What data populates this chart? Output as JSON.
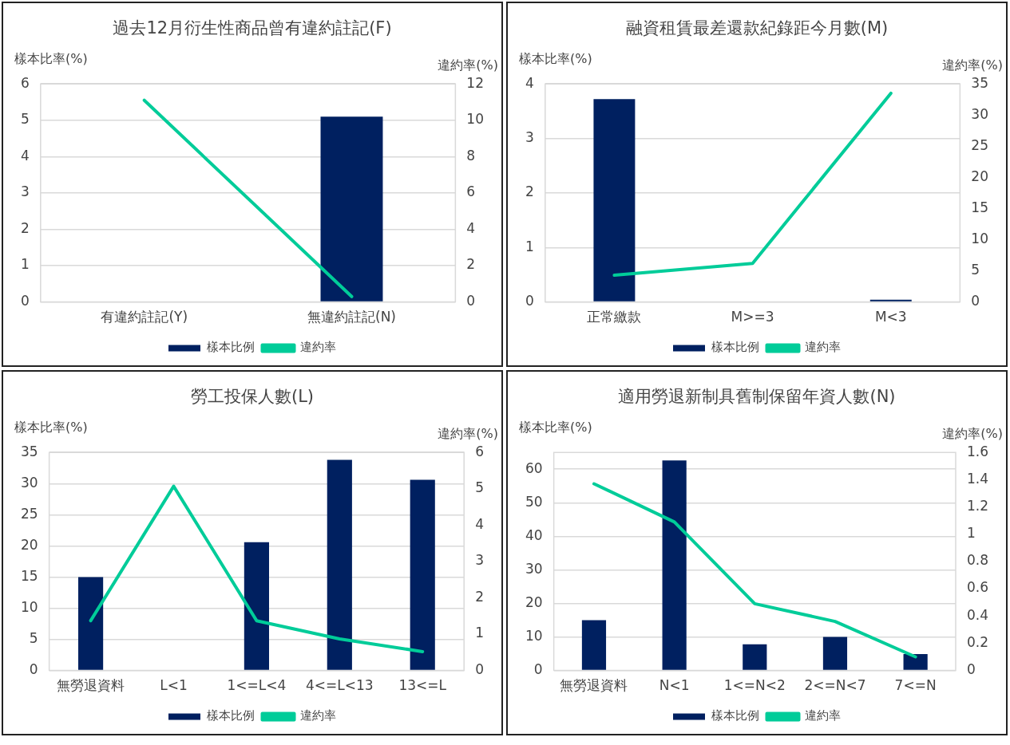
{
  "chart_data": [
    {
      "type": "bar",
      "title": "過去12月衍生性商品曾有違約註記(F)",
      "ylabel": "樣本比率(%)",
      "y2label": "違約率(%)",
      "categories": [
        "有違約註記(Y)",
        "無違約註記(N)"
      ],
      "series": [
        {
          "name": "樣本比例",
          "color": "#002060",
          "values": [
            0,
            5.1
          ]
        },
        {
          "name": "違約率",
          "type": "line",
          "axis": "y2",
          "color": "#00cc99",
          "values": [
            11.1,
            0.3
          ]
        }
      ],
      "ylim": [
        0,
        6
      ],
      "yticks": [
        0,
        1,
        2,
        3,
        4,
        5,
        6
      ],
      "y2lim": [
        0,
        12
      ],
      "y2ticks": [
        0,
        2,
        4,
        6,
        8,
        10,
        12
      ],
      "grid": "y",
      "legend": "bottom"
    },
    {
      "type": "bar",
      "title": "融資租賃最差還款紀錄距今月數(M)",
      "ylabel": "樣本比率(%)",
      "y2label": "違約率(%)",
      "categories": [
        "正常繳款",
        "M>=3",
        "M<3"
      ],
      "series": [
        {
          "name": "樣本比例",
          "color": "#002060",
          "values": [
            3.72,
            0,
            0.04
          ]
        },
        {
          "name": "違約率",
          "type": "line",
          "axis": "y2",
          "color": "#00cc99",
          "values": [
            4.3,
            6.2,
            33.5
          ]
        }
      ],
      "ylim": [
        0,
        4
      ],
      "yticks": [
        0,
        1,
        2,
        3,
        4
      ],
      "y2lim": [
        0,
        35
      ],
      "y2ticks": [
        0,
        5,
        10,
        15,
        20,
        25,
        30,
        35
      ],
      "grid": "y",
      "legend": "bottom"
    },
    {
      "type": "bar",
      "title": "勞工投保人數(L)",
      "ylabel": "樣本比率(%)",
      "y2label": "違約率(%)",
      "categories": [
        "無勞退資料",
        "L<1",
        "1<=L<4",
        "4<=L<13",
        "13<=L"
      ],
      "series": [
        {
          "name": "樣本比例",
          "color": "#002060",
          "values": [
            15.0,
            0,
            20.6,
            33.8,
            30.6
          ]
        },
        {
          "name": "違約率",
          "type": "line",
          "axis": "y2",
          "color": "#00cc99",
          "values": [
            1.37,
            5.07,
            1.37,
            0.87,
            0.52
          ]
        }
      ],
      "ylim": [
        0,
        35
      ],
      "yticks": [
        0,
        5,
        10,
        15,
        20,
        25,
        30,
        35
      ],
      "y2lim": [
        0,
        6
      ],
      "y2ticks": [
        0,
        1,
        2,
        3,
        4,
        5,
        6
      ],
      "grid": "y",
      "legend": "bottom"
    },
    {
      "type": "bar",
      "title": "適用勞退新制具舊制保留年資人數(N)",
      "ylabel": "樣本比率(%)",
      "y2label": "違約率(%)",
      "categories": [
        "無勞退資料",
        "N<1",
        "1<=N<2",
        "2<=N<7",
        "7<=N"
      ],
      "series": [
        {
          "name": "樣本比例",
          "color": "#002060",
          "values": [
            15.0,
            62.6,
            7.8,
            10.0,
            4.9
          ]
        },
        {
          "name": "違約率",
          "type": "line",
          "axis": "y2",
          "color": "#00cc99",
          "values": [
            1.37,
            1.09,
            0.49,
            0.36,
            0.1
          ]
        }
      ],
      "ylim": [
        0,
        65
      ],
      "yticks": [
        0,
        10,
        20,
        30,
        40,
        50,
        60
      ],
      "y2lim": [
        0,
        1.6
      ],
      "y2ticks": [
        0,
        0.2,
        0.4,
        0.6,
        0.8,
        1,
        1.2,
        1.4,
        1.6
      ],
      "grid": "y",
      "legend": "bottom"
    }
  ]
}
